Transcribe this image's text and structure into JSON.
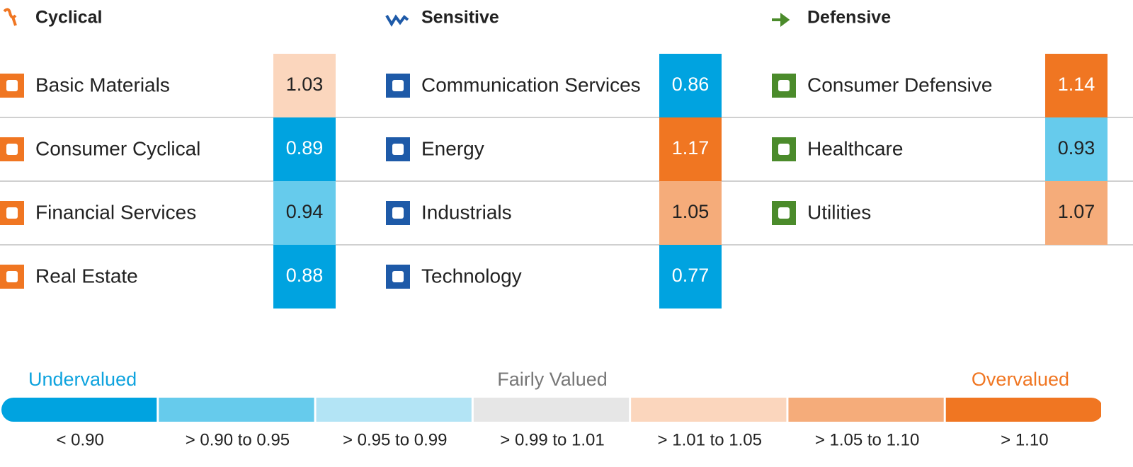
{
  "groups": [
    {
      "title": "Cyclical",
      "color": "#f07622",
      "sectors": [
        {
          "name": "Basic Materials",
          "value": 1.03,
          "color": "#fbd6bd"
        },
        {
          "name": "Consumer Cyclical",
          "value": 0.89,
          "color": "#00a3e0"
        },
        {
          "name": "Financial Services",
          "value": 0.94,
          "color": "#66cbec"
        },
        {
          "name": "Real Estate",
          "value": 0.88,
          "color": "#00a3e0"
        }
      ]
    },
    {
      "title": "Sensitive",
      "color": "#1e5aa8",
      "sectors": [
        {
          "name": "Communication Services",
          "value": 0.86,
          "color": "#00a3e0"
        },
        {
          "name": "Energy",
          "value": 1.17,
          "color": "#f07622"
        },
        {
          "name": "Industrials",
          "value": 1.05,
          "color": "#f5ac7a"
        },
        {
          "name": "Technology",
          "value": 0.77,
          "color": "#00a3e0"
        }
      ]
    },
    {
      "title": "Defensive",
      "color": "#4b8b2b",
      "sectors": [
        {
          "name": "Consumer Defensive",
          "value": 1.14,
          "color": "#f07622"
        },
        {
          "name": "Healthcare",
          "value": 0.93,
          "color": "#66cbec"
        },
        {
          "name": "Utilities",
          "value": 1.07,
          "color": "#f5ac7a"
        }
      ]
    }
  ],
  "legend": {
    "labels": [
      {
        "text": "Undervalued",
        "color": "#0ea3de"
      },
      {
        "text": "Fairly Valued",
        "color": "#777777"
      },
      {
        "text": "Overvalued",
        "color": "#f07622"
      }
    ],
    "bins": [
      {
        "label": "< 0.90",
        "color": "#00a3e0"
      },
      {
        "label": "> 0.90 to 0.95",
        "color": "#66cbec"
      },
      {
        "label": "> 0.95 to 0.99",
        "color": "#b3e4f5"
      },
      {
        "label": "> 0.99 to 1.01",
        "color": "#e6e6e6"
      },
      {
        "label": "> 1.01 to 1.05",
        "color": "#fbd6bd"
      },
      {
        "label": "> 1.05 to 1.10",
        "color": "#f5ac7a"
      },
      {
        "label": "> 1.10",
        "color": "#f07622"
      }
    ]
  }
}
